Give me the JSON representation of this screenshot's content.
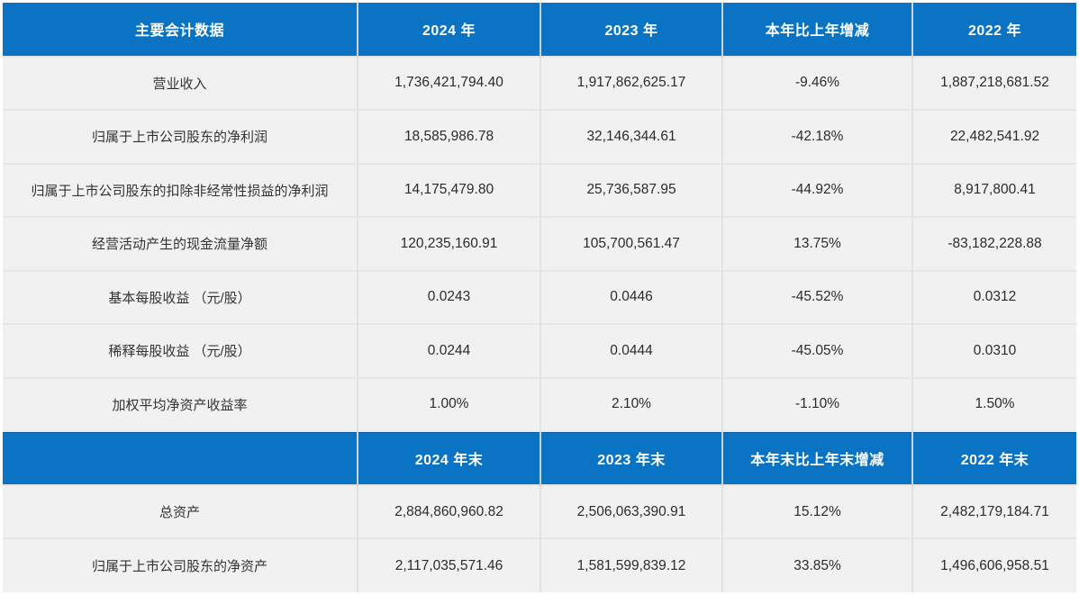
{
  "colors": {
    "header_bg": "#0b73c4",
    "header_text": "#ffffff",
    "row_bg": "#f1f1f2",
    "body_text": "#2b2b2b",
    "divider": "#e2e2e2"
  },
  "sections": [
    {
      "header": [
        "主要会计数据",
        "2024 年",
        "2023 年",
        "本年比上年增减",
        "2022 年"
      ],
      "rows": [
        [
          "营业收入",
          "1,736,421,794.40",
          "1,917,862,625.17",
          "-9.46%",
          "1,887,218,681.52"
        ],
        [
          "归属于上市公司股东的净利润",
          "18,585,986.78",
          "32,146,344.61",
          "-42.18%",
          "22,482,541.92"
        ],
        [
          "归属于上市公司股东的扣除非经常性损益的净利润",
          "14,175,479.80",
          "25,736,587.95",
          "-44.92%",
          "8,917,800.41"
        ],
        [
          "经营活动产生的现金流量净额",
          "120,235,160.91",
          "105,700,561.47",
          "13.75%",
          "-83,182,228.88"
        ],
        [
          "基本每股收益 （元/股）",
          "0.0243",
          "0.0446",
          "-45.52%",
          "0.0312"
        ],
        [
          "稀释每股收益 （元/股）",
          "0.0244",
          "0.0444",
          "-45.05%",
          "0.0310"
        ],
        [
          "加权平均净资产收益率",
          "1.00%",
          "2.10%",
          "-1.10%",
          "1.50%"
        ]
      ]
    },
    {
      "header": [
        "",
        "2024 年末",
        "2023 年末",
        "本年末比上年末增减",
        "2022 年末"
      ],
      "rows": [
        [
          "总资产",
          "2,884,860,960.82",
          "2,506,063,390.91",
          "15.12%",
          "2,482,179,184.71"
        ],
        [
          "归属于上市公司股东的净资产",
          "2,117,035,571.46",
          "1,581,599,839.12",
          "33.85%",
          "1,496,606,958.51"
        ]
      ]
    }
  ]
}
